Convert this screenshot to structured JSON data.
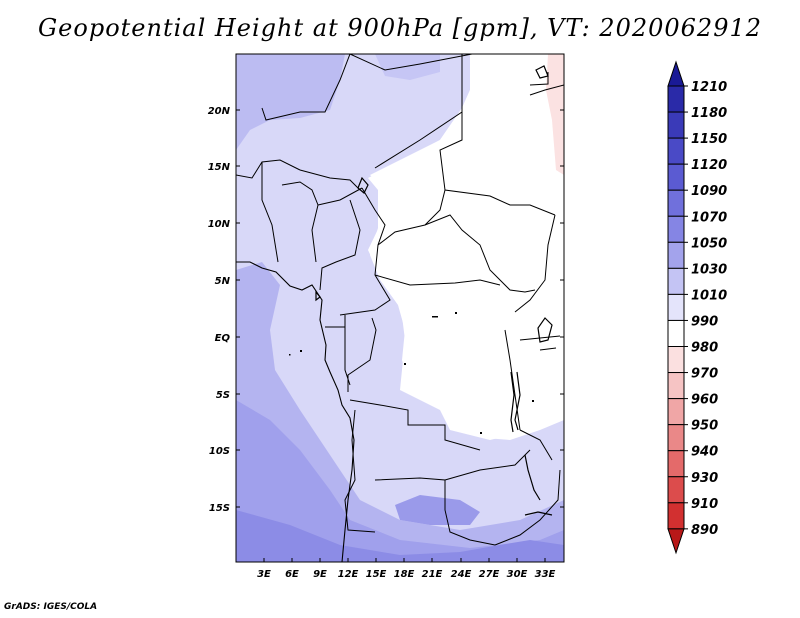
{
  "title": "Geopotential Height at 900hPa [gpm], VT: 2020062912",
  "credit": "GrADS: IGES/COLA",
  "map": {
    "lat_labels": [
      "20N",
      "15N",
      "10N",
      "5N",
      "EQ",
      "5S",
      "10S",
      "15S"
    ],
    "lon_labels": [
      "3E",
      "6E",
      "9E",
      "12E",
      "15E",
      "18E",
      "21E",
      "24E",
      "27E",
      "30E",
      "33E"
    ]
  },
  "colorbar": {
    "labels": [
      "1210",
      "1180",
      "1150",
      "1120",
      "1090",
      "1070",
      "1050",
      "1030",
      "1010",
      "990",
      "980",
      "970",
      "960",
      "950",
      "940",
      "930",
      "910",
      "890"
    ],
    "colors": [
      "#1a1a96",
      "#2a2aa8",
      "#3a3ab8",
      "#4a4ac6",
      "#5b5bd2",
      "#7070dc",
      "#8585e4",
      "#a3a3ec",
      "#c4c4f4",
      "#e4e4fb",
      "#ffffff",
      "#fbe0e0",
      "#f6c4c4",
      "#f0a6a6",
      "#ea8888",
      "#e46a6a",
      "#dc4c4c",
      "#d23030",
      "#b81818"
    ]
  }
}
